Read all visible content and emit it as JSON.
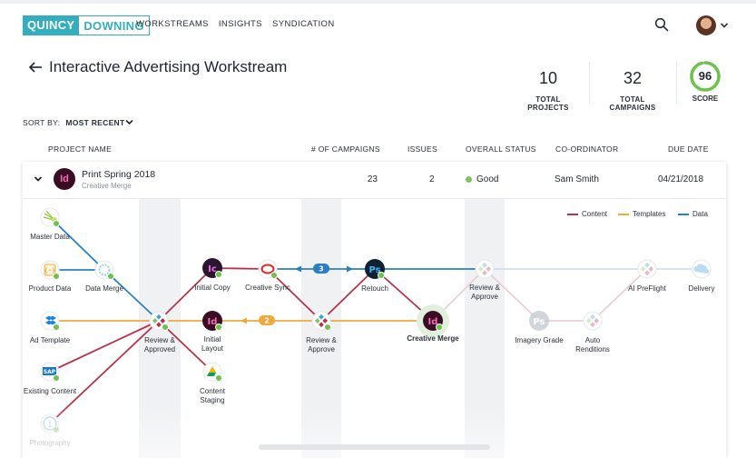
{
  "header": {
    "logo_part1": "QUINCY",
    "logo_part2": "DOWNING",
    "nav": [
      "WORKSTREAMS",
      "INSIGHTS",
      "SYNDICATION"
    ]
  },
  "page": {
    "title": "Interactive Advertising Workstream",
    "stats": [
      {
        "value": "10",
        "label": "TOTAL PROJECTS"
      },
      {
        "value": "32",
        "label": "TOTAL CAMPAIGNS"
      }
    ],
    "score": {
      "value": "96",
      "label": "SCORE",
      "fraction": 0.96,
      "color": "#6cc24a"
    }
  },
  "sort": {
    "label": "SORT BY:",
    "value": "MOST RECENT"
  },
  "table": {
    "columns": [
      "PROJECT NAME",
      "# OF CAMPAIGNS",
      "ISSUES",
      "OVERALL STATUS",
      "CO-ORDINATOR",
      "DUE DATE"
    ],
    "rows": [
      {
        "badge": "Id",
        "name": "Print Spring 2018",
        "subtitle": "Creative Merge",
        "campaigns": "23",
        "issues": "2",
        "status": "Good",
        "coordinator": "Sam Smith",
        "due_date": "04/21/2018"
      }
    ]
  },
  "legend": [
    {
      "label": "Content",
      "color": "#b8334a"
    },
    {
      "label": "Templates",
      "color": "#f0a93b"
    },
    {
      "label": "Data",
      "color": "#2a7fc4"
    }
  ],
  "workflow": {
    "nodes": {
      "master_data": "Master Data",
      "product_data": "Product Data",
      "data_merge": "Data Merge",
      "ad_template": "Ad Template",
      "existing_content": "Existing Content",
      "photography": "Photography",
      "review_approved_1": "Review & Approved",
      "initial_copy": "Initial Copy",
      "initial_layout": "Initial Layout",
      "content_staging": "Content Staging",
      "creative_sync": "Creative Sync",
      "review_approve_2": "Review & Approve",
      "retouch": "Retouch",
      "creative_merge": "Creative Merge",
      "review_approve_3": "Review & Approve",
      "imagery_grade": "Imagery Grade",
      "auto_renditions": "Auto Renditions",
      "ai_preflight": "AI PreFlight",
      "delivery": "Delivery"
    },
    "badges": {
      "sync_count": "3",
      "layout_count": "2"
    },
    "icons": {
      "initial_copy": "Ic",
      "initial_layout": "Id",
      "retouch": "Ps",
      "creative_merge": "Id",
      "imagery_grade": "Ps",
      "product_data": "{·}",
      "existing_content": "SAP"
    }
  }
}
